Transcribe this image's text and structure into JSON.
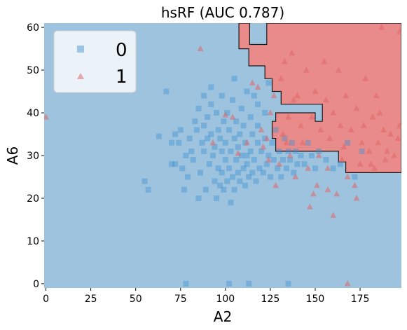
{
  "chart_data": {
    "type": "scatter",
    "title": "hsRF (AUC 0.787)",
    "xlabel": "A2",
    "ylabel": "A6",
    "xlim": [
      -1,
      198
    ],
    "ylim": [
      -1,
      61
    ],
    "xticks": [
      0,
      25,
      50,
      75,
      100,
      125,
      150,
      175
    ],
    "yticks": [
      0,
      10,
      20,
      30,
      40,
      50,
      60
    ],
    "grid": false,
    "legend_position": "top-left",
    "background_color": "#9dc3df",
    "region_color": "#e98b8b",
    "decision_region_class1": [
      [
        107.5,
        61
      ],
      [
        113.5,
        61
      ],
      [
        113.5,
        56
      ],
      [
        123,
        56
      ],
      [
        123,
        61
      ],
      [
        198,
        61
      ],
      [
        198,
        26
      ],
      [
        167,
        26
      ],
      [
        167,
        28.5
      ],
      [
        163,
        28.5
      ],
      [
        163,
        31
      ],
      [
        128,
        31
      ],
      [
        128,
        34
      ],
      [
        126,
        34
      ],
      [
        126,
        38
      ],
      [
        128,
        38
      ],
      [
        128,
        40
      ],
      [
        150,
        40
      ],
      [
        150,
        38
      ],
      [
        154,
        38
      ],
      [
        154,
        42
      ],
      [
        131,
        42
      ],
      [
        131,
        45
      ],
      [
        126,
        45
      ],
      [
        126,
        48
      ],
      [
        122,
        48
      ],
      [
        122,
        51
      ],
      [
        113,
        51
      ],
      [
        113,
        55
      ],
      [
        107.5,
        55
      ]
    ],
    "series": [
      {
        "name": "0",
        "marker": "square",
        "color": "#3a8fd0",
        "points": [
          [
            55,
            24
          ],
          [
            57,
            22
          ],
          [
            63,
            34.5
          ],
          [
            67,
            45
          ],
          [
            70,
            28
          ],
          [
            70,
            33
          ],
          [
            72,
            28
          ],
          [
            72,
            35
          ],
          [
            74,
            33
          ],
          [
            75,
            36
          ],
          [
            76,
            27
          ],
          [
            77,
            22
          ],
          [
            78,
            0
          ],
          [
            78,
            30
          ],
          [
            79,
            25
          ],
          [
            80,
            34
          ],
          [
            81,
            31
          ],
          [
            82,
            29
          ],
          [
            83,
            38
          ],
          [
            84,
            36
          ],
          [
            85,
            20
          ],
          [
            85,
            41
          ],
          [
            86,
            26
          ],
          [
            87,
            33
          ],
          [
            88,
            31
          ],
          [
            88,
            37
          ],
          [
            89,
            22
          ],
          [
            90,
            39
          ],
          [
            91,
            28
          ],
          [
            92,
            35
          ],
          [
            92,
            42
          ],
          [
            93,
            30
          ],
          [
            94,
            24
          ],
          [
            94,
            32
          ],
          [
            95,
            40
          ],
          [
            95,
            20
          ],
          [
            96,
            27
          ],
          [
            96,
            36
          ],
          [
            97,
            23
          ],
          [
            97,
            34
          ],
          [
            98,
            31
          ],
          [
            98,
            26
          ],
          [
            99,
            38
          ],
          [
            99,
            22
          ],
          [
            100,
            29
          ],
          [
            100,
            33
          ],
          [
            101,
            24
          ],
          [
            101,
            40
          ],
          [
            102,
            0
          ],
          [
            102,
            27
          ],
          [
            102,
            36
          ],
          [
            103,
            19
          ],
          [
            103,
            31
          ],
          [
            104,
            25
          ],
          [
            104,
            43
          ],
          [
            105,
            34
          ],
          [
            105,
            22
          ],
          [
            106,
            29
          ],
          [
            106,
            38
          ],
          [
            107,
            26
          ],
          [
            107,
            32
          ],
          [
            108,
            24
          ],
          [
            108,
            35
          ],
          [
            109,
            30
          ],
          [
            109,
            41
          ],
          [
            110,
            27
          ],
          [
            110,
            37
          ],
          [
            111,
            23
          ],
          [
            111,
            33
          ],
          [
            112,
            28
          ],
          [
            112,
            45
          ],
          [
            113,
            25
          ],
          [
            113,
            0
          ],
          [
            114,
            31
          ],
          [
            114,
            39
          ],
          [
            115,
            26
          ],
          [
            115,
            35
          ],
          [
            116,
            29
          ],
          [
            116,
            44
          ],
          [
            117,
            24
          ],
          [
            118,
            33
          ],
          [
            118,
            37
          ],
          [
            119,
            27
          ],
          [
            120,
            31
          ],
          [
            121,
            26
          ],
          [
            122,
            34
          ],
          [
            122,
            40
          ],
          [
            123,
            28
          ],
          [
            124,
            30
          ],
          [
            125,
            25
          ],
          [
            126,
            33
          ],
          [
            127,
            29
          ],
          [
            128,
            36
          ],
          [
            129,
            27
          ],
          [
            130,
            31
          ],
          [
            131,
            25
          ],
          [
            132,
            29
          ],
          [
            133,
            34
          ],
          [
            134,
            27
          ],
          [
            135,
            0
          ],
          [
            135,
            31
          ],
          [
            136,
            29
          ],
          [
            137,
            33
          ],
          [
            138,
            26
          ],
          [
            139,
            31
          ],
          [
            140,
            28
          ],
          [
            142,
            30
          ],
          [
            144,
            28
          ],
          [
            146,
            33
          ],
          [
            148,
            30
          ],
          [
            150,
            27
          ],
          [
            152,
            31
          ],
          [
            156,
            29
          ],
          [
            160,
            27
          ],
          [
            164,
            28
          ],
          [
            168,
            33
          ],
          [
            172,
            25
          ],
          [
            176,
            31
          ],
          [
            88,
            44
          ],
          [
            92,
            46
          ],
          [
            105,
            48
          ],
          [
            118,
            42
          ],
          [
            124,
            47
          ],
          [
            98,
            44
          ],
          [
            90,
            34
          ],
          [
            112,
            30
          ]
        ]
      },
      {
        "name": "1",
        "marker": "triangle",
        "color": "#e06666",
        "points": [
          [
            0,
            39
          ],
          [
            86,
            55
          ],
          [
            93,
            33
          ],
          [
            100,
            39.5
          ],
          [
            104,
            39
          ],
          [
            107,
            30.5
          ],
          [
            112,
            33
          ],
          [
            115,
            47
          ],
          [
            118,
            46
          ],
          [
            120,
            36
          ],
          [
            121,
            32
          ],
          [
            123,
            34
          ],
          [
            124,
            29
          ],
          [
            125,
            40
          ],
          [
            127,
            44
          ],
          [
            128,
            23
          ],
          [
            130,
            28
          ],
          [
            131,
            48
          ],
          [
            132,
            35
          ],
          [
            133,
            52
          ],
          [
            134,
            33
          ],
          [
            135,
            39
          ],
          [
            136,
            30
          ],
          [
            137,
            54
          ],
          [
            138,
            43
          ],
          [
            139,
            25
          ],
          [
            140,
            44
          ],
          [
            142,
            37
          ],
          [
            143,
            33
          ],
          [
            145,
            50
          ],
          [
            146,
            27
          ],
          [
            148,
            39
          ],
          [
            149,
            21
          ],
          [
            150,
            45
          ],
          [
            151,
            23
          ],
          [
            152,
            30
          ],
          [
            153,
            36
          ],
          [
            155,
            52
          ],
          [
            156,
            43
          ],
          [
            157,
            27
          ],
          [
            158,
            34
          ],
          [
            160,
            40
          ],
          [
            160,
            16
          ],
          [
            162,
            21
          ],
          [
            163,
            50
          ],
          [
            164,
            37
          ],
          [
            165,
            29
          ],
          [
            166,
            32
          ],
          [
            167,
            44
          ],
          [
            168,
            0
          ],
          [
            168,
            25
          ],
          [
            170,
            36
          ],
          [
            172,
            23
          ],
          [
            173,
            41
          ],
          [
            175,
            28
          ],
          [
            176,
            33
          ],
          [
            177,
            37
          ],
          [
            178,
            48
          ],
          [
            180,
            31
          ],
          [
            182,
            39
          ],
          [
            183,
            27
          ],
          [
            184,
            44
          ],
          [
            185,
            33
          ],
          [
            186,
            40
          ],
          [
            188,
            36
          ],
          [
            189,
            29
          ],
          [
            190,
            31
          ],
          [
            192,
            35
          ],
          [
            194,
            30
          ],
          [
            196,
            34
          ],
          [
            197,
            37
          ],
          [
            197,
            59
          ],
          [
            187,
            60
          ],
          [
            181,
            28
          ],
          [
            173,
            20
          ],
          [
            157,
            22
          ],
          [
            147,
            18
          ]
        ]
      }
    ]
  }
}
